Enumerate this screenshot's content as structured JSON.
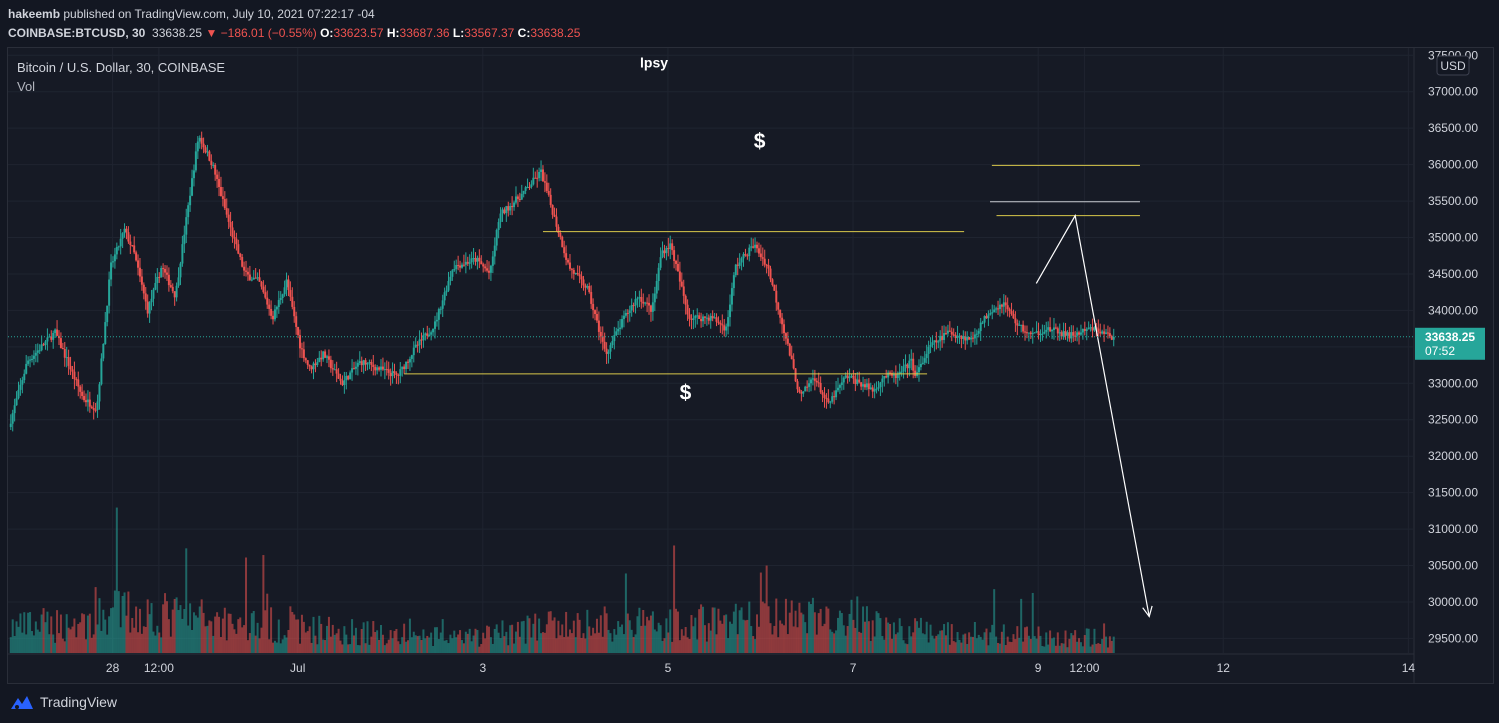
{
  "header": {
    "author": "hakeemb",
    "published_text": "published on TradingView.com, July 10, 2021 07:22:17 -04",
    "symbol": "COINBASE:BTCUSD, 30",
    "last": "33638.25",
    "change_arrow": "▼",
    "change": "−186.01 (−0.55%)",
    "o_label": "O:",
    "o_value": "33623.57",
    "h_label": "H:",
    "h_value": "33687.36",
    "l_label": "L:",
    "l_value": "33567.37",
    "c_label": "C:",
    "c_value": "33638.25"
  },
  "legend": {
    "title": "Bitcoin / U.S. Dollar, 30, COINBASE",
    "vol": "Vol"
  },
  "currency_badge": "USD",
  "price_badge": {
    "value": "33638.25",
    "countdown": "07:52"
  },
  "footer": {
    "brand": "TradingView"
  },
  "annotations": {
    "lpsy": "lpsy",
    "dollar_top": "$",
    "dollar_bottom": "$"
  },
  "colors": {
    "background": "#161a25",
    "up": "#26a69a",
    "down": "#ef5350",
    "level_line": "#d9c84a",
    "arrow": "#ffffff",
    "price_line": "#26a69a"
  },
  "chart_data": {
    "type": "candlestick",
    "title": "Bitcoin / U.S. Dollar, 30, COINBASE",
    "y_axis": {
      "ticks": [
        29500,
        30000,
        30500,
        31000,
        31500,
        32000,
        32500,
        33000,
        33500,
        34000,
        34500,
        35000,
        35500,
        36000,
        36500,
        37000,
        37500
      ],
      "tick_labels": [
        "29500.00",
        "30000.00",
        "30500.00",
        "31000.00",
        "31500.00",
        "32000.00",
        "32500.00",
        "33000.00",
        "33500.00",
        "34000.00",
        "34500.00",
        "35000.00",
        "35500.00",
        "36000.00",
        "36500.00",
        "37000.00",
        "37500.00"
      ],
      "range": [
        29300,
        37600
      ]
    },
    "x_axis": {
      "tick_labels": [
        "28",
        "12:00",
        "Jul",
        "3",
        "5",
        "7",
        "9",
        "12:00",
        "12",
        "14"
      ],
      "tick_days": [
        0.0,
        0.5,
        2.0,
        4.0,
        6.0,
        8.0,
        10.0,
        10.5,
        12.0,
        14.0
      ],
      "range_days": [
        -1.13,
        14.05
      ]
    },
    "last_price": 33638.25,
    "price_path_days": [
      -1.1,
      -0.9,
      -0.6,
      -0.4,
      -0.3,
      -0.15,
      0.0,
      0.15,
      0.25,
      0.4,
      0.55,
      0.7,
      0.8,
      0.95,
      1.1,
      1.3,
      1.45,
      1.6,
      1.75,
      1.9,
      2.05,
      2.15,
      2.3,
      2.5,
      2.7,
      2.9,
      3.1,
      3.3,
      3.5,
      3.7,
      3.95,
      4.1,
      4.2,
      4.45,
      4.65,
      4.95,
      5.15,
      5.35,
      5.55,
      5.7,
      5.85,
      5.95,
      6.05,
      6.25,
      6.5,
      6.65,
      6.75,
      6.95,
      7.1,
      7.3,
      7.45,
      7.6,
      7.75,
      7.95,
      8.1,
      8.25,
      8.35,
      8.5,
      8.65,
      8.7,
      8.85,
      9.05,
      9.3,
      9.5,
      9.65,
      9.8,
      9.95,
      10.1,
      10.25,
      10.35,
      10.5,
      10.6,
      10.75,
      10.82
    ],
    "price_path_values": [
      32400,
      33300,
      33700,
      33100,
      32800,
      32650,
      34600,
      35100,
      34800,
      34000,
      34600,
      34200,
      35100,
      36400,
      36000,
      35100,
      34500,
      34400,
      33900,
      34400,
      33500,
      33200,
      33400,
      33000,
      33300,
      33200,
      33100,
      33500,
      33800,
      34600,
      34700,
      34500,
      35300,
      35600,
      35900,
      34600,
      34300,
      33400,
      33900,
      34200,
      34000,
      34800,
      34900,
      33900,
      33900,
      33750,
      34600,
      34900,
      34600,
      33600,
      32800,
      33100,
      32700,
      33100,
      33000,
      32900,
      33100,
      33100,
      33300,
      33100,
      33500,
      33700,
      33600,
      34000,
      34100,
      33800,
      33650,
      33750,
      33700,
      33650,
      33700,
      33750,
      33680,
      33638
    ],
    "volume_level_days": [
      -1.1,
      -0.2,
      0.0,
      1.4,
      2.0,
      3.8,
      4.5,
      8.0,
      8.5,
      10.82
    ],
    "volume_level_values": [
      0.45,
      0.55,
      0.75,
      0.55,
      0.45,
      0.25,
      0.45,
      0.65,
      0.4,
      0.25
    ],
    "annotations": [
      {
        "type": "hline",
        "x_start": 4.65,
        "x_end": 9.2,
        "y": 35080
      },
      {
        "type": "hline",
        "x_start": 3.15,
        "x_end": 8.8,
        "y": 33130
      },
      {
        "type": "hline",
        "x_start": 9.5,
        "x_end": 11.1,
        "y": 35990
      },
      {
        "type": "hline",
        "x_start": 9.48,
        "x_end": 11.1,
        "y": 35490
      },
      {
        "type": "hline",
        "x_start": 9.55,
        "x_end": 11.1,
        "y": 35300
      },
      {
        "type": "arrow",
        "points": [
          [
            9.98,
            34370
          ],
          [
            10.4,
            35300
          ],
          [
            11.2,
            29800
          ]
        ]
      },
      {
        "type": "text",
        "text": "lpsy",
        "x": 5.85,
        "y": 37330
      },
      {
        "type": "text",
        "text": "$",
        "x": 6.99,
        "y": 36230
      },
      {
        "type": "text",
        "text": "$",
        "x": 6.19,
        "y": 32780
      }
    ]
  }
}
